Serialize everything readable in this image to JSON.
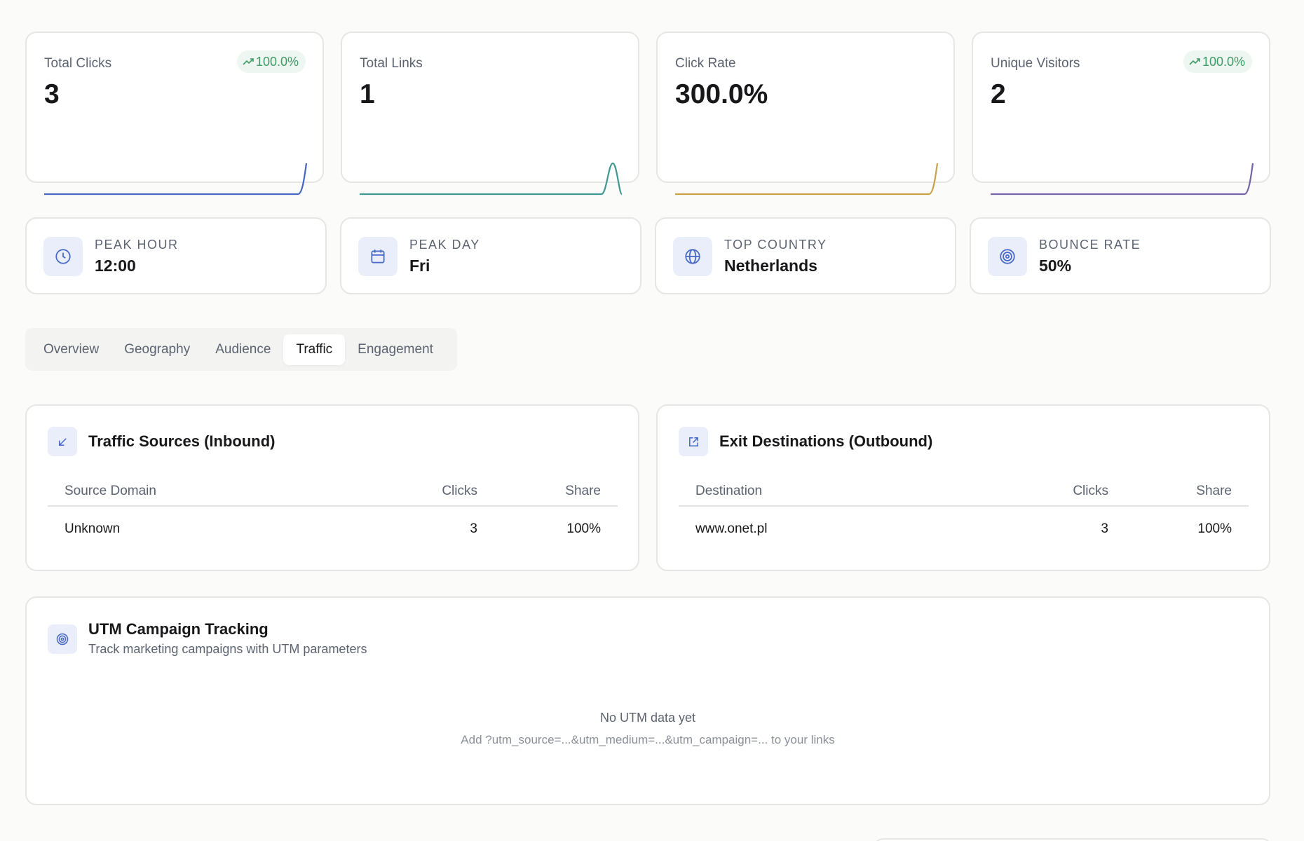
{
  "stats": [
    {
      "label": "Total Clicks",
      "value": "3",
      "badge": "100.0%",
      "color": "#4467c4"
    },
    {
      "label": "Total Links",
      "value": "1",
      "badge": "",
      "color": "#3f9990"
    },
    {
      "label": "Click Rate",
      "value": "300.0%",
      "badge": "",
      "color": "#c9a247"
    },
    {
      "label": "Unique Visitors",
      "value": "2",
      "badge": "100.0%",
      "color": "#7462a8"
    }
  ],
  "insights": [
    {
      "label": "Peak Hour",
      "value": "12:00",
      "icon": "clock-icon"
    },
    {
      "label": "Peak Day",
      "value": "Fri",
      "icon": "calendar-icon"
    },
    {
      "label": "Top Country",
      "value": "Netherlands",
      "icon": "globe-icon"
    },
    {
      "label": "Bounce Rate",
      "value": "50%",
      "icon": "target-icon"
    }
  ],
  "tabs": [
    "Overview",
    "Geography",
    "Audience",
    "Traffic",
    "Engagement"
  ],
  "active_tab": "Traffic",
  "inbound": {
    "title": "Traffic Sources (Inbound)",
    "columns": [
      "Source Domain",
      "Clicks",
      "Share"
    ],
    "rows": [
      [
        "Unknown",
        "3",
        "100%"
      ]
    ]
  },
  "outbound": {
    "title": "Exit Destinations (Outbound)",
    "columns": [
      "Destination",
      "Clicks",
      "Share"
    ],
    "rows": [
      [
        "www.onet.pl",
        "3",
        "100%"
      ]
    ]
  },
  "utm": {
    "title": "UTM Campaign Tracking",
    "subtitle": "Track marketing campaigns with UTM parameters",
    "empty_title": "No UTM data yet",
    "empty_hint": "Add ?utm_source=...&utm_medium=...&utm_campaign=... to your links"
  },
  "colors": {
    "accent_icon": "#4467c4",
    "badge_green": "#3f9a66",
    "icon_bg": "#eaeefa"
  }
}
